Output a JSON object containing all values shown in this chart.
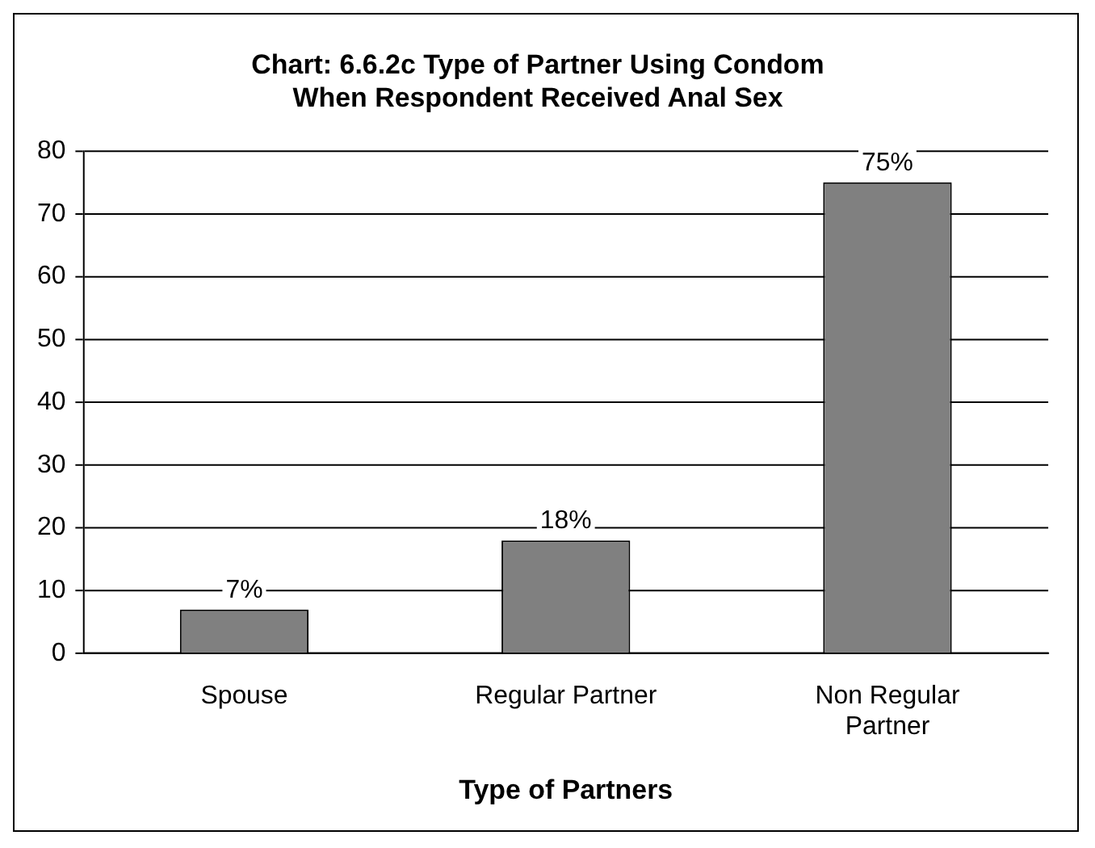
{
  "chart_data": {
    "type": "bar",
    "title": "Chart: 6.6.2c Type of Partner Using Condom\nWhen Respondent Received Anal Sex",
    "xlabel": "Type of Partners",
    "categories": [
      "Spouse",
      "Regular Partner",
      "Non Regular Partner"
    ],
    "values": [
      7,
      18,
      75
    ],
    "value_labels": [
      "7%",
      "18%",
      "75%"
    ],
    "color": "#808080",
    "ylim": [
      0,
      80
    ],
    "yticks": [
      0,
      10,
      20,
      30,
      40,
      50,
      60,
      70,
      80
    ],
    "grid": "y",
    "legend": false
  }
}
